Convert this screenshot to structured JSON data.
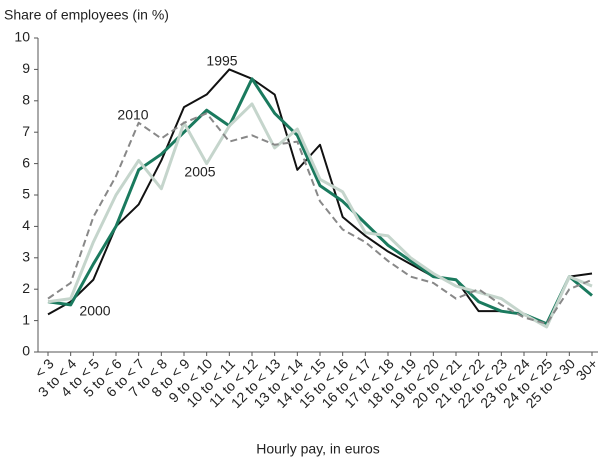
{
  "chart_data": {
    "type": "line",
    "y_axis_label": "Share of employees (in %)",
    "x_axis_label": "Hourly pay, in euros",
    "categories": [
      "< 3",
      "3 to < 4",
      "4 to < 5",
      "5 to < 6",
      "6 to < 7",
      "7 to < 8",
      "8 to < 9",
      "9 to < 10",
      "10 to < 11",
      "11 to < 12",
      "12 to < 13",
      "13 to < 14",
      "14 to < 15",
      "15 to < 16",
      "16 to < 17",
      "17 to < 18",
      "18 to < 19",
      "19 to < 20",
      "20 to < 21",
      "21 to < 22",
      "22 to < 23",
      "23 to < 24",
      "24 to < 25",
      "25 to < 30",
      "30+"
    ],
    "series": [
      {
        "name": "1995",
        "color": "#111111",
        "dash": false,
        "values": [
          1.2,
          1.6,
          2.3,
          4.0,
          4.7,
          6.1,
          7.8,
          8.2,
          9.0,
          8.7,
          8.2,
          5.8,
          6.6,
          4.3,
          3.7,
          3.2,
          2.8,
          2.4,
          2.3,
          1.3,
          1.3,
          1.2,
          0.9,
          2.4,
          2.5
        ]
      },
      {
        "name": "2000",
        "color": "#1a7a5e",
        "dash": false,
        "values": [
          1.6,
          1.5,
          2.8,
          4.0,
          5.8,
          6.3,
          7.0,
          7.7,
          7.2,
          8.7,
          7.6,
          6.9,
          5.3,
          4.8,
          4.1,
          3.4,
          2.9,
          2.4,
          2.3,
          1.6,
          1.3,
          1.2,
          0.9,
          2.4,
          1.8
        ]
      },
      {
        "name": "2005",
        "color": "#c5d5cc",
        "dash": false,
        "values": [
          1.6,
          1.7,
          3.5,
          5.0,
          6.1,
          5.2,
          7.3,
          6.0,
          7.2,
          7.9,
          6.5,
          7.1,
          5.5,
          5.1,
          3.8,
          3.7,
          3.0,
          2.5,
          2.1,
          1.9,
          1.7,
          1.2,
          0.8,
          2.4,
          2.1
        ]
      },
      {
        "name": "2010",
        "color": "#888888",
        "dash": true,
        "values": [
          1.7,
          2.2,
          4.3,
          5.6,
          7.3,
          6.8,
          7.3,
          7.6,
          6.7,
          6.9,
          6.6,
          6.7,
          4.8,
          3.9,
          3.5,
          2.9,
          2.4,
          2.2,
          1.7,
          2.0,
          1.5,
          1.1,
          0.9,
          2.0,
          2.3
        ]
      }
    ],
    "ylim": [
      0,
      10
    ],
    "yticks": [
      0,
      1,
      2,
      3,
      4,
      5,
      6,
      7,
      8,
      9,
      10
    ],
    "grid": false
  }
}
